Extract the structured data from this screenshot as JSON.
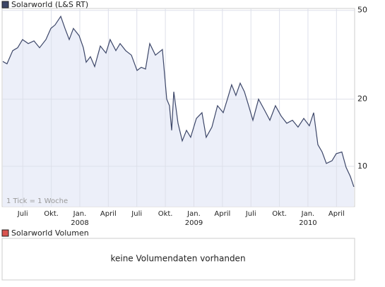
{
  "chart_data": [
    {
      "type": "line",
      "series": [
        {
          "name": "Solarworld (L&S RT)",
          "color": "#3c4668",
          "fill": "#eceff9",
          "values": [
            29.5,
            28.8,
            33,
            34,
            37,
            35.5,
            36.5,
            34,
            37,
            41.5,
            43,
            47,
            41.5,
            37,
            41.5,
            38.5,
            34,
            29.3,
            31,
            28,
            34.6,
            32.2,
            37,
            33,
            35.5,
            33,
            31.5,
            26.9,
            27.8,
            27.3,
            35.5,
            31.5,
            33.4,
            20,
            18.7,
            14.5,
            21.6,
            15.6,
            13,
            14.5,
            13.5,
            16.4,
            17.4,
            13.5,
            15,
            18.7,
            17.4,
            20,
            23.2,
            20.8,
            23.6,
            21.6,
            18.7,
            16.1,
            20,
            18,
            16.1,
            18.7,
            16.8,
            15.6,
            16.1,
            15,
            16.4,
            15.2,
            17.4,
            12.5,
            11.6,
            10.3,
            10.6,
            11.4,
            11.6,
            9.9,
            9,
            8.1
          ]
        }
      ],
      "x": [
        2007.325,
        2007.362,
        2007.412,
        2007.455,
        2007.498,
        2007.548,
        2007.598,
        2007.647,
        2007.703,
        2007.746,
        2007.783,
        2007.833,
        2007.87,
        2007.907,
        2007.944,
        2007.994,
        2008.031,
        2008.056,
        2008.093,
        2008.13,
        2008.18,
        2008.229,
        2008.266,
        2008.316,
        2008.353,
        2008.402,
        2008.452,
        2008.502,
        2008.539,
        2008.576,
        2008.613,
        2008.663,
        2008.724,
        2008.762,
        2008.786,
        2008.805,
        2008.824,
        2008.861,
        2008.898,
        2008.935,
        2008.972,
        2009.022,
        2009.071,
        2009.108,
        2009.158,
        2009.207,
        2009.257,
        2009.294,
        2009.331,
        2009.368,
        2009.406,
        2009.443,
        2009.48,
        2009.517,
        2009.567,
        2009.616,
        2009.666,
        2009.715,
        2009.765,
        2009.814,
        2009.864,
        2009.913,
        2009.963,
        2010.012,
        2010.05,
        2010.087,
        2010.124,
        2010.161,
        2010.211,
        2010.248,
        2010.297,
        2010.334,
        2010.372,
        2010.402
      ],
      "xlim": [
        2007.319,
        2010.409
      ],
      "xticks": [
        {
          "value": 2007.5,
          "label": "Juli"
        },
        {
          "value": 2007.75,
          "label": "Okt."
        },
        {
          "value": 2008,
          "label": "Jan."
        },
        {
          "value": 2008.25,
          "label": "April"
        },
        {
          "value": 2008.5,
          "label": "Juli"
        },
        {
          "value": 2008.75,
          "label": "Okt."
        },
        {
          "value": 2009,
          "label": "Jan."
        },
        {
          "value": 2009.25,
          "label": "April"
        },
        {
          "value": 2009.5,
          "label": "Juli"
        },
        {
          "value": 2009.75,
          "label": "Okt."
        },
        {
          "value": 2010,
          "label": "Jan."
        },
        {
          "value": 2010.25,
          "label": "April"
        }
      ],
      "year_ticks": [
        2008,
        2009,
        2010
      ],
      "ylim": [
        6.6,
        51
      ],
      "yticks": [
        10,
        20,
        50
      ],
      "log_scale": true,
      "grid": true,
      "annotation": "1 Tick = 1 Woche"
    },
    {
      "type": "bar",
      "series": [
        {
          "name": "Solarworld Volumen",
          "color": "#d9534f",
          "values": []
        }
      ],
      "message": "keine Volumendaten vorhanden"
    }
  ]
}
